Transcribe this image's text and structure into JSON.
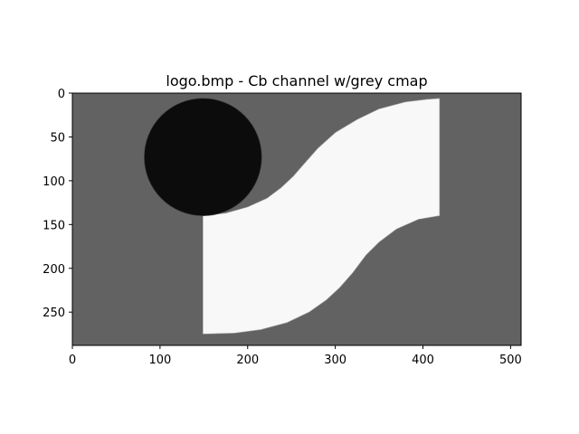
{
  "chart_data": {
    "type": "heatmap",
    "title": "logo.bmp - Cb channel w/grey cmap",
    "xlabel": "",
    "ylabel": "",
    "colormap": "grey",
    "xlim": [
      0,
      512
    ],
    "ylim": [
      288,
      0
    ],
    "x_ticks": [
      0,
      100,
      200,
      300,
      400,
      500
    ],
    "y_ticks": [
      0,
      50,
      100,
      150,
      200,
      250
    ],
    "grid": false,
    "legend": "none",
    "image_regions": {
      "background": {
        "value_color": "#626262"
      },
      "circle": {
        "cx": 149,
        "cy": 73,
        "r": 67,
        "value_color": "#0c0c0c"
      },
      "s_shape": {
        "value_color": "#f8f8f8",
        "outline": [
          [
            149,
            140
          ],
          [
            175,
            137
          ],
          [
            200,
            130
          ],
          [
            222,
            120
          ],
          [
            238,
            108
          ],
          [
            252,
            95
          ],
          [
            265,
            80
          ],
          [
            280,
            63
          ],
          [
            300,
            45
          ],
          [
            325,
            30
          ],
          [
            350,
            18
          ],
          [
            380,
            10
          ],
          [
            405,
            7
          ],
          [
            419,
            6
          ],
          [
            419,
            140
          ],
          [
            395,
            144
          ],
          [
            370,
            155
          ],
          [
            350,
            170
          ],
          [
            335,
            185
          ],
          [
            320,
            205
          ],
          [
            305,
            222
          ],
          [
            290,
            236
          ],
          [
            270,
            250
          ],
          [
            245,
            262
          ],
          [
            215,
            270
          ],
          [
            185,
            274
          ],
          [
            149,
            275
          ]
        ]
      }
    }
  }
}
